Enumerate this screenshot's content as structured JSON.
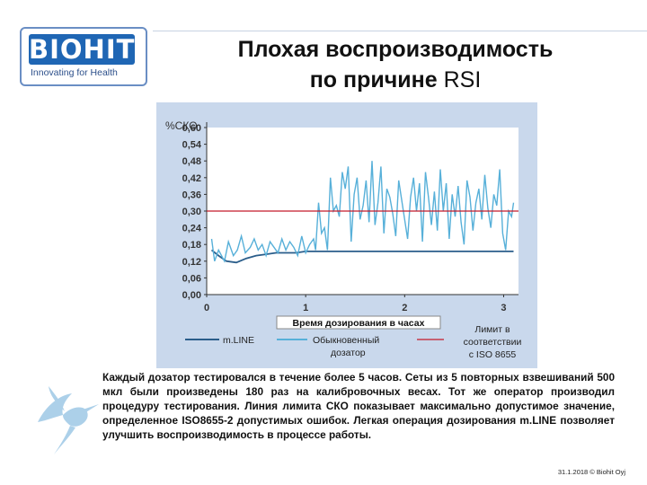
{
  "logo": {
    "name": "BIOHIT",
    "tagline": "Innovating for Health"
  },
  "title": {
    "line1": "Плохая воспроизводимость",
    "line2_bold": "по причине ",
    "line2_regular": "RSI"
  },
  "chart_data": {
    "type": "line",
    "ylabel": "%СКО",
    "xlabel": "Время дозирования в часах",
    "ylim": [
      0.0,
      0.6
    ],
    "xlim": [
      0,
      3.15
    ],
    "y_ticks": [
      "0,60",
      "0,54",
      "0,48",
      "0,42",
      "0,36",
      "0,30",
      "0,24",
      "0,18",
      "0,12",
      "0,06",
      "0,00"
    ],
    "x_ticks": [
      "0",
      "1",
      "2",
      "3"
    ],
    "grid": false,
    "colors": {
      "mline": "#2a5d8a",
      "standard": "#57b0d9",
      "limit": "#c41a2a"
    },
    "series": [
      {
        "name": "m.LINE",
        "x": [
          0.05,
          0.12,
          0.2,
          0.3,
          0.4,
          0.5,
          0.6,
          0.7,
          0.8,
          0.9,
          1.0,
          1.2,
          1.5,
          2.0,
          2.5,
          3.0,
          3.1
        ],
        "y": [
          0.16,
          0.14,
          0.12,
          0.115,
          0.13,
          0.14,
          0.145,
          0.15,
          0.15,
          0.15,
          0.155,
          0.155,
          0.155,
          0.155,
          0.155,
          0.155,
          0.155
        ]
      },
      {
        "name": "Обыкновенный дозатор",
        "x": [
          0.05,
          0.08,
          0.12,
          0.18,
          0.22,
          0.27,
          0.31,
          0.35,
          0.39,
          0.44,
          0.48,
          0.52,
          0.56,
          0.6,
          0.64,
          0.68,
          0.72,
          0.76,
          0.8,
          0.84,
          0.88,
          0.92,
          0.96,
          1.0,
          1.04,
          1.08,
          1.1,
          1.13,
          1.16,
          1.19,
          1.22,
          1.25,
          1.28,
          1.31,
          1.34,
          1.37,
          1.4,
          1.43,
          1.46,
          1.49,
          1.52,
          1.55,
          1.58,
          1.61,
          1.64,
          1.67,
          1.7,
          1.73,
          1.76,
          1.79,
          1.82,
          1.85,
          1.88,
          1.91,
          1.94,
          1.97,
          2.0,
          2.03,
          2.06,
          2.09,
          2.12,
          2.15,
          2.18,
          2.21,
          2.24,
          2.27,
          2.3,
          2.33,
          2.36,
          2.39,
          2.42,
          2.45,
          2.48,
          2.51,
          2.54,
          2.57,
          2.6,
          2.63,
          2.66,
          2.69,
          2.72,
          2.75,
          2.78,
          2.81,
          2.84,
          2.87,
          2.9,
          2.93,
          2.96,
          2.99,
          3.02,
          3.05,
          3.08,
          3.1
        ],
        "y": [
          0.2,
          0.12,
          0.16,
          0.12,
          0.19,
          0.14,
          0.16,
          0.21,
          0.15,
          0.17,
          0.2,
          0.16,
          0.18,
          0.14,
          0.19,
          0.17,
          0.15,
          0.2,
          0.16,
          0.19,
          0.17,
          0.14,
          0.21,
          0.15,
          0.18,
          0.2,
          0.16,
          0.33,
          0.22,
          0.24,
          0.16,
          0.42,
          0.3,
          0.32,
          0.28,
          0.44,
          0.38,
          0.46,
          0.19,
          0.36,
          0.42,
          0.27,
          0.32,
          0.41,
          0.26,
          0.48,
          0.25,
          0.33,
          0.46,
          0.22,
          0.38,
          0.35,
          0.29,
          0.21,
          0.41,
          0.34,
          0.27,
          0.2,
          0.35,
          0.42,
          0.3,
          0.4,
          0.19,
          0.44,
          0.35,
          0.25,
          0.37,
          0.23,
          0.45,
          0.3,
          0.4,
          0.2,
          0.36,
          0.28,
          0.39,
          0.26,
          0.18,
          0.41,
          0.35,
          0.23,
          0.33,
          0.38,
          0.27,
          0.43,
          0.31,
          0.24,
          0.36,
          0.32,
          0.45,
          0.22,
          0.16,
          0.3,
          0.28,
          0.33
        ]
      },
      {
        "name": "Лимит в соответствии с ISO 8655",
        "x": [
          0,
          3.15
        ],
        "y": [
          0.3,
          0.3
        ]
      }
    ]
  },
  "legend": {
    "mline": "m.LINE",
    "standard_line1": "Обыкновенный",
    "standard_line2": "дозатор",
    "limit_line1": "Лимит в",
    "limit_line2": "соответствии",
    "limit_line3": "с ISO 8655"
  },
  "description": "Каждый дозатор тестировался в течение более 5 часов. Сеты из 5 повторных взвешиваний 500 мкл были произведены 180 раз на калибровочных весах. Тот же оператор производил процедуру тестирования. Линия лимита СКО показывает максимально допустимое значение, определенное ISO8655-2 допустимых ошибок. Легкая операция дозирования m.LINE позволяет улучшить воспроизводимость в процессе работы.",
  "footer": "31.1.2018 © Biohit Oyj"
}
